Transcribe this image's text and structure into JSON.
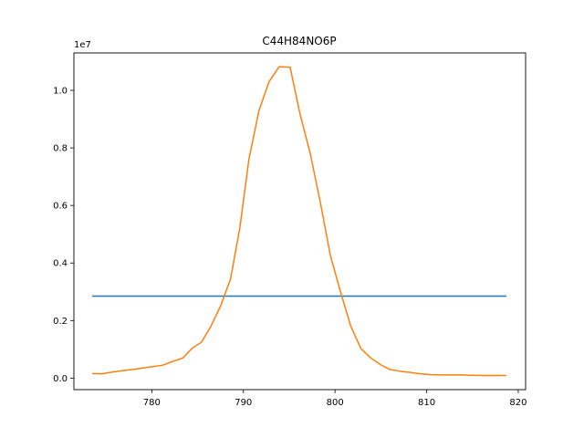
{
  "chart_data": {
    "type": "line",
    "title": "C44H84NO6P",
    "xlabel": "",
    "ylabel": "",
    "y_scale_label": "1e7",
    "xlim": [
      771.5,
      820.8
    ],
    "ylim": [
      -0.04,
      1.13
    ],
    "x_ticks": [
      780,
      790,
      800,
      810,
      820
    ],
    "y_ticks": [
      0.0,
      0.2,
      0.4,
      0.6,
      0.8,
      1.0
    ],
    "x_tick_labels": [
      "780",
      "790",
      "800",
      "810",
      "820"
    ],
    "y_tick_labels": [
      "0.0",
      "0.2",
      "0.4",
      "0.6",
      "0.8",
      "1.0"
    ],
    "grid": false,
    "series": [
      {
        "color": "#1f77b4",
        "x": [
          773.5,
          818.7
        ],
        "y": [
          0.285,
          0.285
        ]
      },
      {
        "color": "#ff7f0e",
        "x": [
          773.5,
          774.6,
          775.7,
          776.8,
          777.9,
          779.0,
          780.1,
          781.2,
          782.3,
          783.4,
          784.4,
          785.4,
          786.4,
          787.5,
          788.6,
          789.6,
          790.6,
          791.7,
          792.8,
          793.9,
          795.1,
          796.2,
          797.3,
          798.4,
          799.5,
          800.6,
          801.7,
          802.8,
          803.9,
          805.0,
          806.0,
          807.1,
          808.2,
          809.3,
          810.5,
          811.6,
          812.7,
          813.8,
          814.9,
          816.0,
          817.1,
          818.7
        ],
        "y": [
          0.016,
          0.015,
          0.021,
          0.026,
          0.03,
          0.035,
          0.04,
          0.045,
          0.058,
          0.07,
          0.104,
          0.124,
          0.177,
          0.25,
          0.345,
          0.52,
          0.76,
          0.93,
          1.03,
          1.082,
          1.08,
          0.915,
          0.78,
          0.61,
          0.425,
          0.3,
          0.182,
          0.104,
          0.07,
          0.046,
          0.03,
          0.024,
          0.02,
          0.015,
          0.012,
          0.011,
          0.011,
          0.011,
          0.01,
          0.009,
          0.009,
          0.009
        ],
        "_note": "placeholder"
      }
    ]
  }
}
